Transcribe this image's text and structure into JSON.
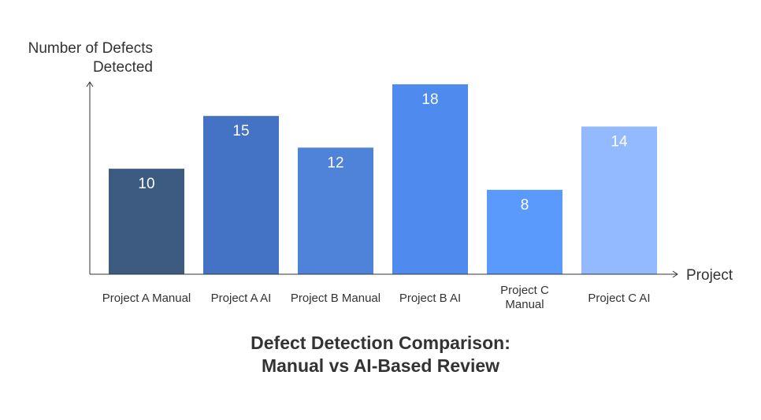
{
  "chart_data": {
    "type": "bar",
    "title": "Defect Detection Comparison:\nManual vs AI-Based Review",
    "xlabel": "Project",
    "ylabel": "Number of Defects\nDetected",
    "categories": [
      "Project A Manual",
      "Project A AI",
      "Project B Manual",
      "Project B AI",
      "Project C\nManual",
      "Project C AI"
    ],
    "values": [
      10,
      15,
      12,
      18,
      8,
      14
    ],
    "ylim": [
      0,
      18
    ],
    "grid": false,
    "legend": "none",
    "data_labels": true,
    "colors": [
      "#3d5a80",
      "#4472c4",
      "#4f83d9",
      "#4f8bee",
      "#5a9afc",
      "#93baff"
    ]
  }
}
